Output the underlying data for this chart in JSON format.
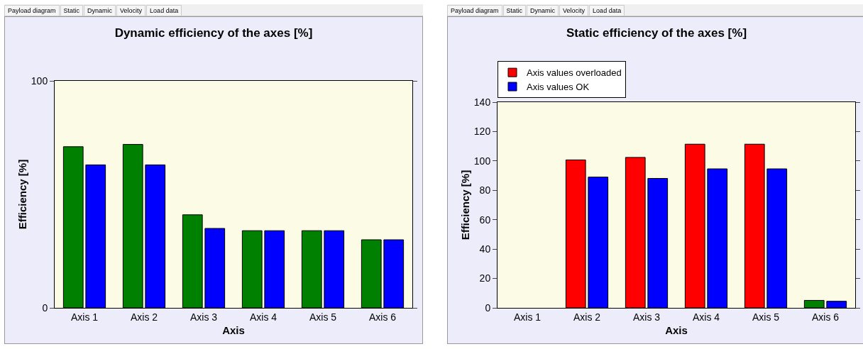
{
  "chart_data": [
    {
      "type": "bar",
      "title": "Dynamic efficiency of the axes [%]",
      "xlabel": "Axis",
      "ylabel": "Efficiency [%]",
      "annotations": [
        "Payload diagram",
        "Static",
        "Dynamic",
        "Velocity",
        "Load data"
      ],
      "categories": [
        "Axis 1",
        "Axis 2",
        "Axis 3",
        "Axis 4",
        "Axis 5",
        "Axis 6"
      ],
      "series": [
        {
          "color": "#008000",
          "values": [
            71,
            72,
            41,
            34,
            34,
            30
          ]
        },
        {
          "color": "#0000ff",
          "values": [
            63,
            63,
            35,
            34,
            34,
            30
          ]
        }
      ],
      "ylim": [
        0,
        100
      ],
      "yticks": [
        0,
        100
      ],
      "grid": false,
      "legend": false
    },
    {
      "type": "bar",
      "title": "Static efficiency of the axes [%]",
      "xlabel": "Axis",
      "ylabel": "Efficiency [%]",
      "annotations": [
        "Payload diagram",
        "Static",
        "Dynamic",
        "Velocity",
        "Load data"
      ],
      "categories": [
        "Axis 1",
        "Axis 2",
        "Axis 3",
        "Axis 4",
        "Axis 5",
        "Axis 6"
      ],
      "series": [
        {
          "name": "Axis values overloaded",
          "colors": [
            "#ff0000",
            "#ff0000",
            "#ff0000",
            "#ff0000",
            "#ff0000",
            "#008000"
          ],
          "values": [
            null,
            100.7,
            102.4,
            111.4,
            111.4,
            5.1
          ]
        },
        {
          "name": "Axis values OK",
          "color": "#0000ff",
          "values": [
            null,
            89,
            88.1,
            94.6,
            94.6,
            4.5
          ]
        }
      ],
      "ylim": [
        0,
        140
      ],
      "yticks": [
        0,
        20,
        40,
        60,
        80,
        100,
        120,
        140
      ],
      "grid": false,
      "legend": "top left"
    }
  ]
}
